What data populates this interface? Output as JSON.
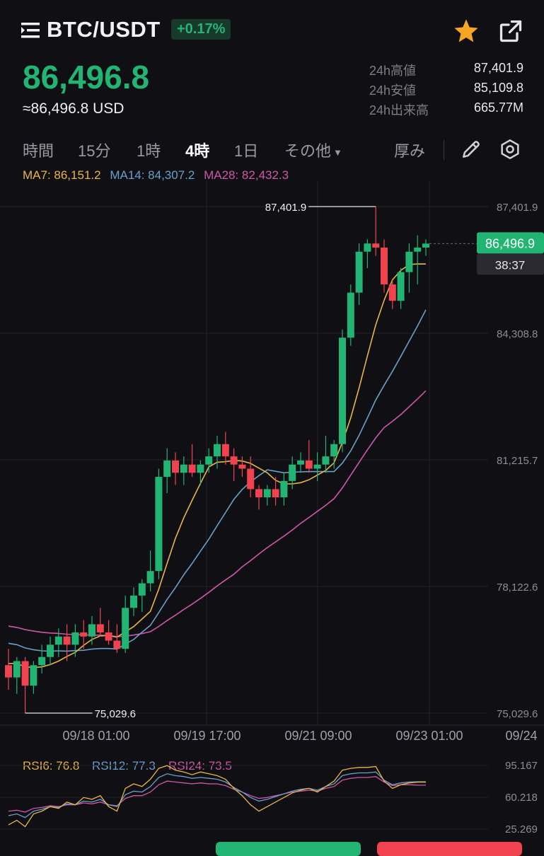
{
  "header": {
    "pair": "BTC/USDT",
    "change": "+0.17%",
    "price": "86,496.8",
    "usd_price": "≈86,496.8 USD",
    "stats": [
      {
        "label": "24h高値",
        "value": "87,401.9"
      },
      {
        "label": "24h安値",
        "value": "85,109.8"
      },
      {
        "label": "24h出来高",
        "value": "665.77M"
      }
    ]
  },
  "tabs": {
    "items": [
      "時間",
      "15分",
      "1時",
      "4時",
      "1日",
      "その他"
    ],
    "active": "4時",
    "depth": "厚み"
  },
  "ma": {
    "ma7": "MA7: 86,151.2",
    "ma14": "MA14: 84,307.2",
    "ma28": "MA28: 82,432.3"
  },
  "colors": {
    "up": "#21b472",
    "down": "#f0434f",
    "ma7": "#e8b44a",
    "ma14": "#6a9fc9",
    "ma28": "#d056a8",
    "accent_star": "#f5a623"
  },
  "icons": [
    "menu-icon",
    "star-icon",
    "share-icon",
    "pencil-icon",
    "settings-icon"
  ],
  "chart_data": {
    "type": "candlestick",
    "y_ticks": [
      "87,401.9",
      "84,308.8",
      "81,215.7",
      "78,122.6",
      "75,029.6"
    ],
    "y_tick_values": [
      87401.9,
      84308.8,
      81215.7,
      78122.6,
      75029.6
    ],
    "x_ticks": [
      "09/18 01:00",
      "09/19 17:00",
      "09/21 09:00",
      "09/23 01:00",
      "09/24"
    ],
    "high_label": "87,401.9",
    "low_label": "75,029.6",
    "current_price": "86,496.9",
    "countdown": "38:37",
    "candles": [
      [
        76200,
        76600,
        75600,
        75900
      ],
      [
        75900,
        76400,
        75500,
        76300
      ],
      [
        76300,
        76400,
        75029.6,
        75700
      ],
      [
        75700,
        76300,
        75500,
        76200
      ],
      [
        76200,
        76700,
        76000,
        76400
      ],
      [
        76400,
        76900,
        76200,
        76700
      ],
      [
        76700,
        77100,
        76400,
        76900
      ],
      [
        76900,
        77200,
        76300,
        76700
      ],
      [
        76700,
        77200,
        76400,
        77000
      ],
      [
        77000,
        77300,
        76600,
        76900
      ],
      [
        76900,
        77400,
        76700,
        77200
      ],
      [
        77200,
        77600,
        76900,
        77000
      ],
      [
        77000,
        77300,
        76700,
        76800
      ],
      [
        76800,
        77200,
        76500,
        76600
      ],
      [
        76600,
        77900,
        76500,
        77600
      ],
      [
        77600,
        78100,
        77400,
        77900
      ],
      [
        77900,
        78300,
        77500,
        78200
      ],
      [
        78200,
        79000,
        78000,
        78500
      ],
      [
        78500,
        81000,
        78300,
        80800
      ],
      [
        80800,
        81500,
        80400,
        81200
      ],
      [
        81200,
        81400,
        80600,
        80900
      ],
      [
        80900,
        81300,
        80600,
        81100
      ],
      [
        81100,
        81600,
        80800,
        80900
      ],
      [
        80900,
        81200,
        80600,
        81100
      ],
      [
        81100,
        81500,
        80900,
        81300
      ],
      [
        81300,
        81800,
        81000,
        81600
      ],
      [
        81600,
        81900,
        81100,
        81300
      ],
      [
        81300,
        81500,
        80700,
        81100
      ],
      [
        81100,
        81300,
        80800,
        81000
      ],
      [
        81000,
        81300,
        80300,
        80500
      ],
      [
        80500,
        80600,
        80000,
        80300
      ],
      [
        80300,
        80600,
        80100,
        80500
      ],
      [
        80500,
        80800,
        80100,
        80300
      ],
      [
        80300,
        80900,
        80100,
        80700
      ],
      [
        80700,
        81300,
        80500,
        81100
      ],
      [
        81100,
        81400,
        80900,
        81200
      ],
      [
        81200,
        81700,
        80900,
        81000
      ],
      [
        81000,
        81400,
        80700,
        81100
      ],
      [
        81100,
        81800,
        80900,
        81300
      ],
      [
        81300,
        81700,
        81000,
        81600
      ],
      [
        81600,
        84400,
        81400,
        84200
      ],
      [
        84200,
        85500,
        84000,
        85300
      ],
      [
        85300,
        86500,
        85000,
        86300
      ],
      [
        86300,
        86600,
        85900,
        86500
      ],
      [
        86500,
        87401.9,
        86200,
        86400
      ],
      [
        86400,
        86600,
        85300,
        85500
      ],
      [
        85500,
        85600,
        84900,
        85100
      ],
      [
        85100,
        85900,
        84900,
        85800
      ],
      [
        85800,
        86500,
        85300,
        86300
      ],
      [
        86300,
        86700,
        85500,
        86400
      ],
      [
        86400,
        86600,
        86200,
        86496.9
      ]
    ],
    "ma7_last": 86151.2,
    "ma14_last": 84307.2,
    "ma28_last": 82432.3,
    "rsi": {
      "labels": [
        "RSI6: 76.8",
        "RSI12: 77.3",
        "RSI24: 73.5"
      ],
      "ticks": [
        "95.167",
        "60.218",
        "25.269"
      ],
      "tick_values": [
        95.167,
        60.218,
        25.269
      ],
      "rsi6": [
        30,
        35,
        28,
        42,
        45,
        50,
        48,
        55,
        52,
        60,
        58,
        62,
        50,
        45,
        70,
        75,
        72,
        80,
        92,
        95,
        90,
        88,
        85,
        88,
        86,
        84,
        80,
        70,
        62,
        52,
        45,
        50,
        55,
        60,
        65,
        68,
        70,
        66,
        72,
        78,
        90,
        92,
        93,
        93,
        94,
        78,
        70,
        74,
        76,
        76.8,
        76.8
      ],
      "rsi12": [
        40,
        42,
        38,
        45,
        47,
        50,
        49,
        53,
        52,
        56,
        55,
        58,
        52,
        50,
        63,
        67,
        66,
        72,
        82,
        86,
        84,
        83,
        81,
        82,
        81,
        80,
        77,
        71,
        66,
        60,
        56,
        58,
        61,
        64,
        67,
        69,
        70,
        68,
        72,
        75,
        84,
        86,
        87,
        87,
        88,
        79,
        74,
        76,
        77,
        77.3,
        77.3
      ],
      "rsi24": [
        45,
        46,
        44,
        48,
        49,
        51,
        50,
        52,
        52,
        54,
        53,
        55,
        52,
        51,
        59,
        62,
        62,
        66,
        74,
        78,
        77,
        76,
        75,
        76,
        75,
        75,
        73,
        69,
        66,
        62,
        59,
        60,
        62,
        64,
        66,
        67,
        68,
        67,
        70,
        72,
        79,
        81,
        82,
        82,
        83,
        77,
        73,
        74,
        74,
        73.5,
        73.5
      ]
    }
  }
}
